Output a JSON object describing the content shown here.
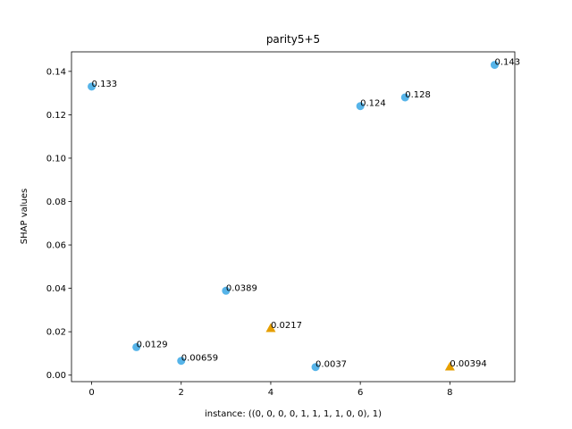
{
  "chart_data": {
    "type": "scatter",
    "title": "parity5+5",
    "xlabel": "instance: ((0, 0, 0, 0, 1, 1, 1, 1, 0, 0), 1)",
    "ylabel": "SHAP values",
    "xlim": [
      -0.45,
      9.45
    ],
    "ylim": [
      -0.003,
      0.149
    ],
    "xticks": [
      0,
      2,
      4,
      6,
      8
    ],
    "xtick_labels": [
      "0",
      "2",
      "4",
      "6",
      "8"
    ],
    "yticks": [
      0.0,
      0.02,
      0.04,
      0.06,
      0.08,
      0.1,
      0.12,
      0.14
    ],
    "ytick_labels": [
      "0.00",
      "0.02",
      "0.04",
      "0.06",
      "0.08",
      "0.10",
      "0.12",
      "0.14"
    ],
    "grid": false,
    "points": [
      {
        "x": 0,
        "y": 0.133,
        "label": "0.133",
        "marker": "circle"
      },
      {
        "x": 1,
        "y": 0.0129,
        "label": "0.0129",
        "marker": "circle"
      },
      {
        "x": 2,
        "y": 0.00659,
        "label": "0.00659",
        "marker": "circle"
      },
      {
        "x": 3,
        "y": 0.0389,
        "label": "0.0389",
        "marker": "circle"
      },
      {
        "x": 4,
        "y": 0.0217,
        "label": "0.0217",
        "marker": "triangle"
      },
      {
        "x": 5,
        "y": 0.0037,
        "label": "0.0037",
        "marker": "circle"
      },
      {
        "x": 6,
        "y": 0.124,
        "label": "0.124",
        "marker": "circle"
      },
      {
        "x": 7,
        "y": 0.128,
        "label": "0.128",
        "marker": "circle"
      },
      {
        "x": 8,
        "y": 0.00394,
        "label": "0.00394",
        "marker": "triangle"
      },
      {
        "x": 9,
        "y": 0.143,
        "label": "0.143",
        "marker": "circle"
      }
    ],
    "colors": {
      "circle": "#56b4e9",
      "triangle": "#e69f00"
    }
  }
}
